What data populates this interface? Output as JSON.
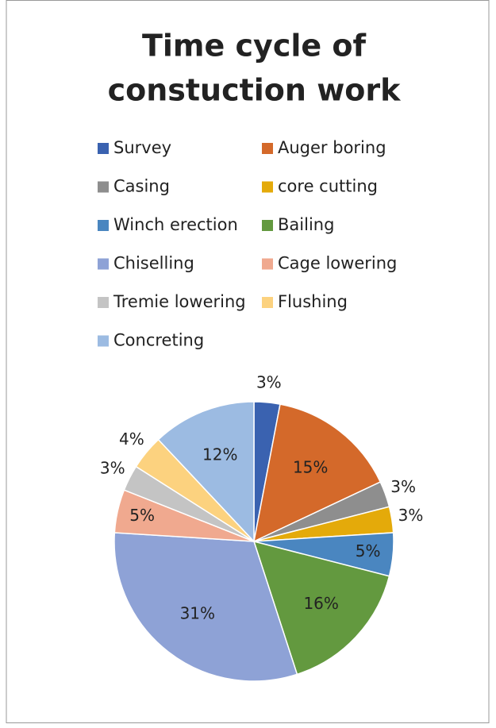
{
  "chart_data": {
    "type": "pie",
    "title": "Time cycle of constuction work",
    "categories": [
      "Survey",
      "Auger boring",
      "Casing",
      "core cutting",
      "Winch erection",
      "Bailing",
      "Chiselling",
      "Cage lowering",
      "Tremie lowering",
      "Flushing",
      "Concreting"
    ],
    "values": [
      3,
      15,
      3,
      3,
      5,
      16,
      31,
      5,
      3,
      4,
      12
    ],
    "value_labels": [
      "3%",
      "15%",
      "3%",
      "3%",
      "5%",
      "16%",
      "31%",
      "5%",
      "3%",
      "4%",
      "12%"
    ],
    "colors": [
      "#3a62b0",
      "#d4692a",
      "#8e8e8e",
      "#e4aa0a",
      "#4a86c0",
      "#63993f",
      "#8ea2d6",
      "#f0a98f",
      "#c4c4c4",
      "#fcd27f",
      "#9cbbe2"
    ],
    "legend": "top"
  }
}
